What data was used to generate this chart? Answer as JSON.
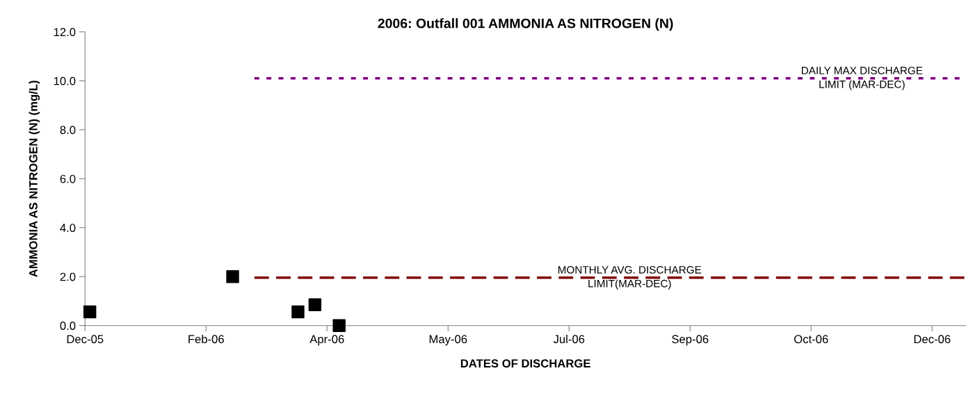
{
  "chart_data": {
    "type": "scatter",
    "title": "2006: Outfall 001 AMMONIA AS NITROGEN (N)",
    "xlabel": "DATES OF DISCHARGE",
    "ylabel": "AMMONIA AS NITROGEN (N) (mg/L)",
    "series": [
      {
        "color": "#000000",
        "marker": "square",
        "x": [
          "2006-01-02",
          "2006-03-02",
          "2006-03-29",
          "2006-04-05",
          "2006-04-15"
        ],
        "values": [
          0.56,
          2.0,
          0.56,
          0.85,
          0.0
        ]
      },
      {
        "type": "line",
        "color": "#800080",
        "line_style": "dotted",
        "marker": "none",
        "x": [
          "2006-03-11",
          "2006-12-30"
        ],
        "values": [
          10.1,
          10.1
        ]
      },
      {
        "type": "line",
        "color": "#800000",
        "line_style": "dashed",
        "marker": "none",
        "x": [
          "2006-03-11",
          "2006-12-30"
        ],
        "values": [
          1.96,
          1.96
        ]
      }
    ],
    "annotations": [
      {
        "text": "DAILY MAX DISCHARGE\nLIMIT (MAR-DEC)",
        "x": "2006-11-17",
        "y": 10.1
      },
      {
        "text": "MONTHLY AVG. DISCHARGE\nLIMIT(MAR-DEC)",
        "x": "2006-08-13",
        "y": 1.96
      }
    ],
    "xlim": [
      "2005-12-31",
      "2006-12-30"
    ],
    "xticks": [
      {
        "value": "2005-12-31",
        "label": "Dec-05"
      },
      {
        "value": "2006-02-19",
        "label": "Feb-06"
      },
      {
        "value": "2006-04-10",
        "label": "Apr-06"
      },
      {
        "value": "2006-05-30",
        "label": "May-06"
      },
      {
        "value": "2006-07-19",
        "label": "Jul-06"
      },
      {
        "value": "2006-09-07",
        "label": "Sep-06"
      },
      {
        "value": "2006-10-27",
        "label": "Oct-06"
      },
      {
        "value": "2006-12-16",
        "label": "Dec-06"
      }
    ],
    "ylim": [
      0,
      12
    ],
    "yticks": [
      {
        "value": 0,
        "label": "0.0"
      },
      {
        "value": 2,
        "label": "2.0"
      },
      {
        "value": 4,
        "label": "4.0"
      },
      {
        "value": 6,
        "label": "6.0"
      },
      {
        "value": 8,
        "label": "8.0"
      },
      {
        "value": 10,
        "label": "10.0"
      },
      {
        "value": 12,
        "label": "12.0"
      }
    ],
    "grid": false,
    "legend": false
  }
}
